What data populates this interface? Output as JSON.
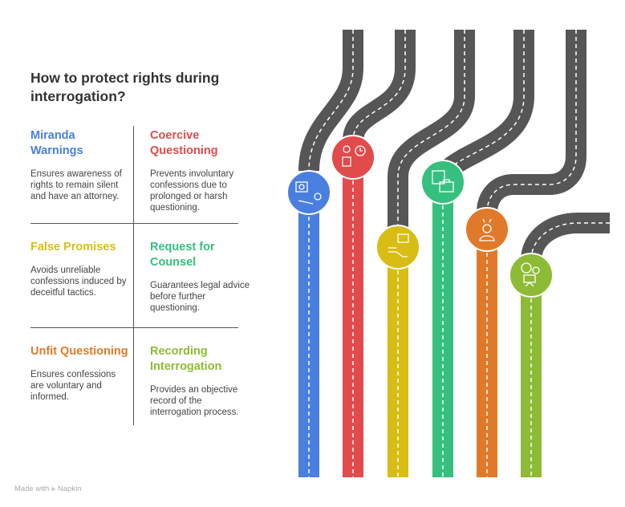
{
  "title": "How to protect rights during interrogation?",
  "items": [
    {
      "title": "Miranda Warnings",
      "desc": "Ensures awareness of rights to remain silent and have an attorney.",
      "color": "#4a7fe0",
      "icon": "sign-person-icon"
    },
    {
      "title": "Coercive Questioning",
      "desc": "Prevents involuntary confessions due to prolonged or harsh questioning.",
      "color": "#e24b4b",
      "icon": "person-clock-icon"
    },
    {
      "title": "False Promises",
      "desc": "Avoids unreliable confessions induced by deceitful tactics.",
      "color": "#d8bd14",
      "icon": "handshake-speech-icon"
    },
    {
      "title": "Request for Counsel",
      "desc": "Guarantees legal advice before further questioning.",
      "color": "#35c07f",
      "icon": "briefcase-documents-icon"
    },
    {
      "title": "Unfit Questioning",
      "desc": "Ensures confessions are voluntary and informed.",
      "color": "#e07a2a",
      "icon": "stressed-person-icon"
    },
    {
      "title": "Recording Interrogation",
      "desc": "Provides an objective record of the interrogation process.",
      "color": "#8dbb35",
      "icon": "video-camera-icon"
    }
  ],
  "footer": {
    "made_with": "Made with",
    "brand": "Napkin"
  }
}
